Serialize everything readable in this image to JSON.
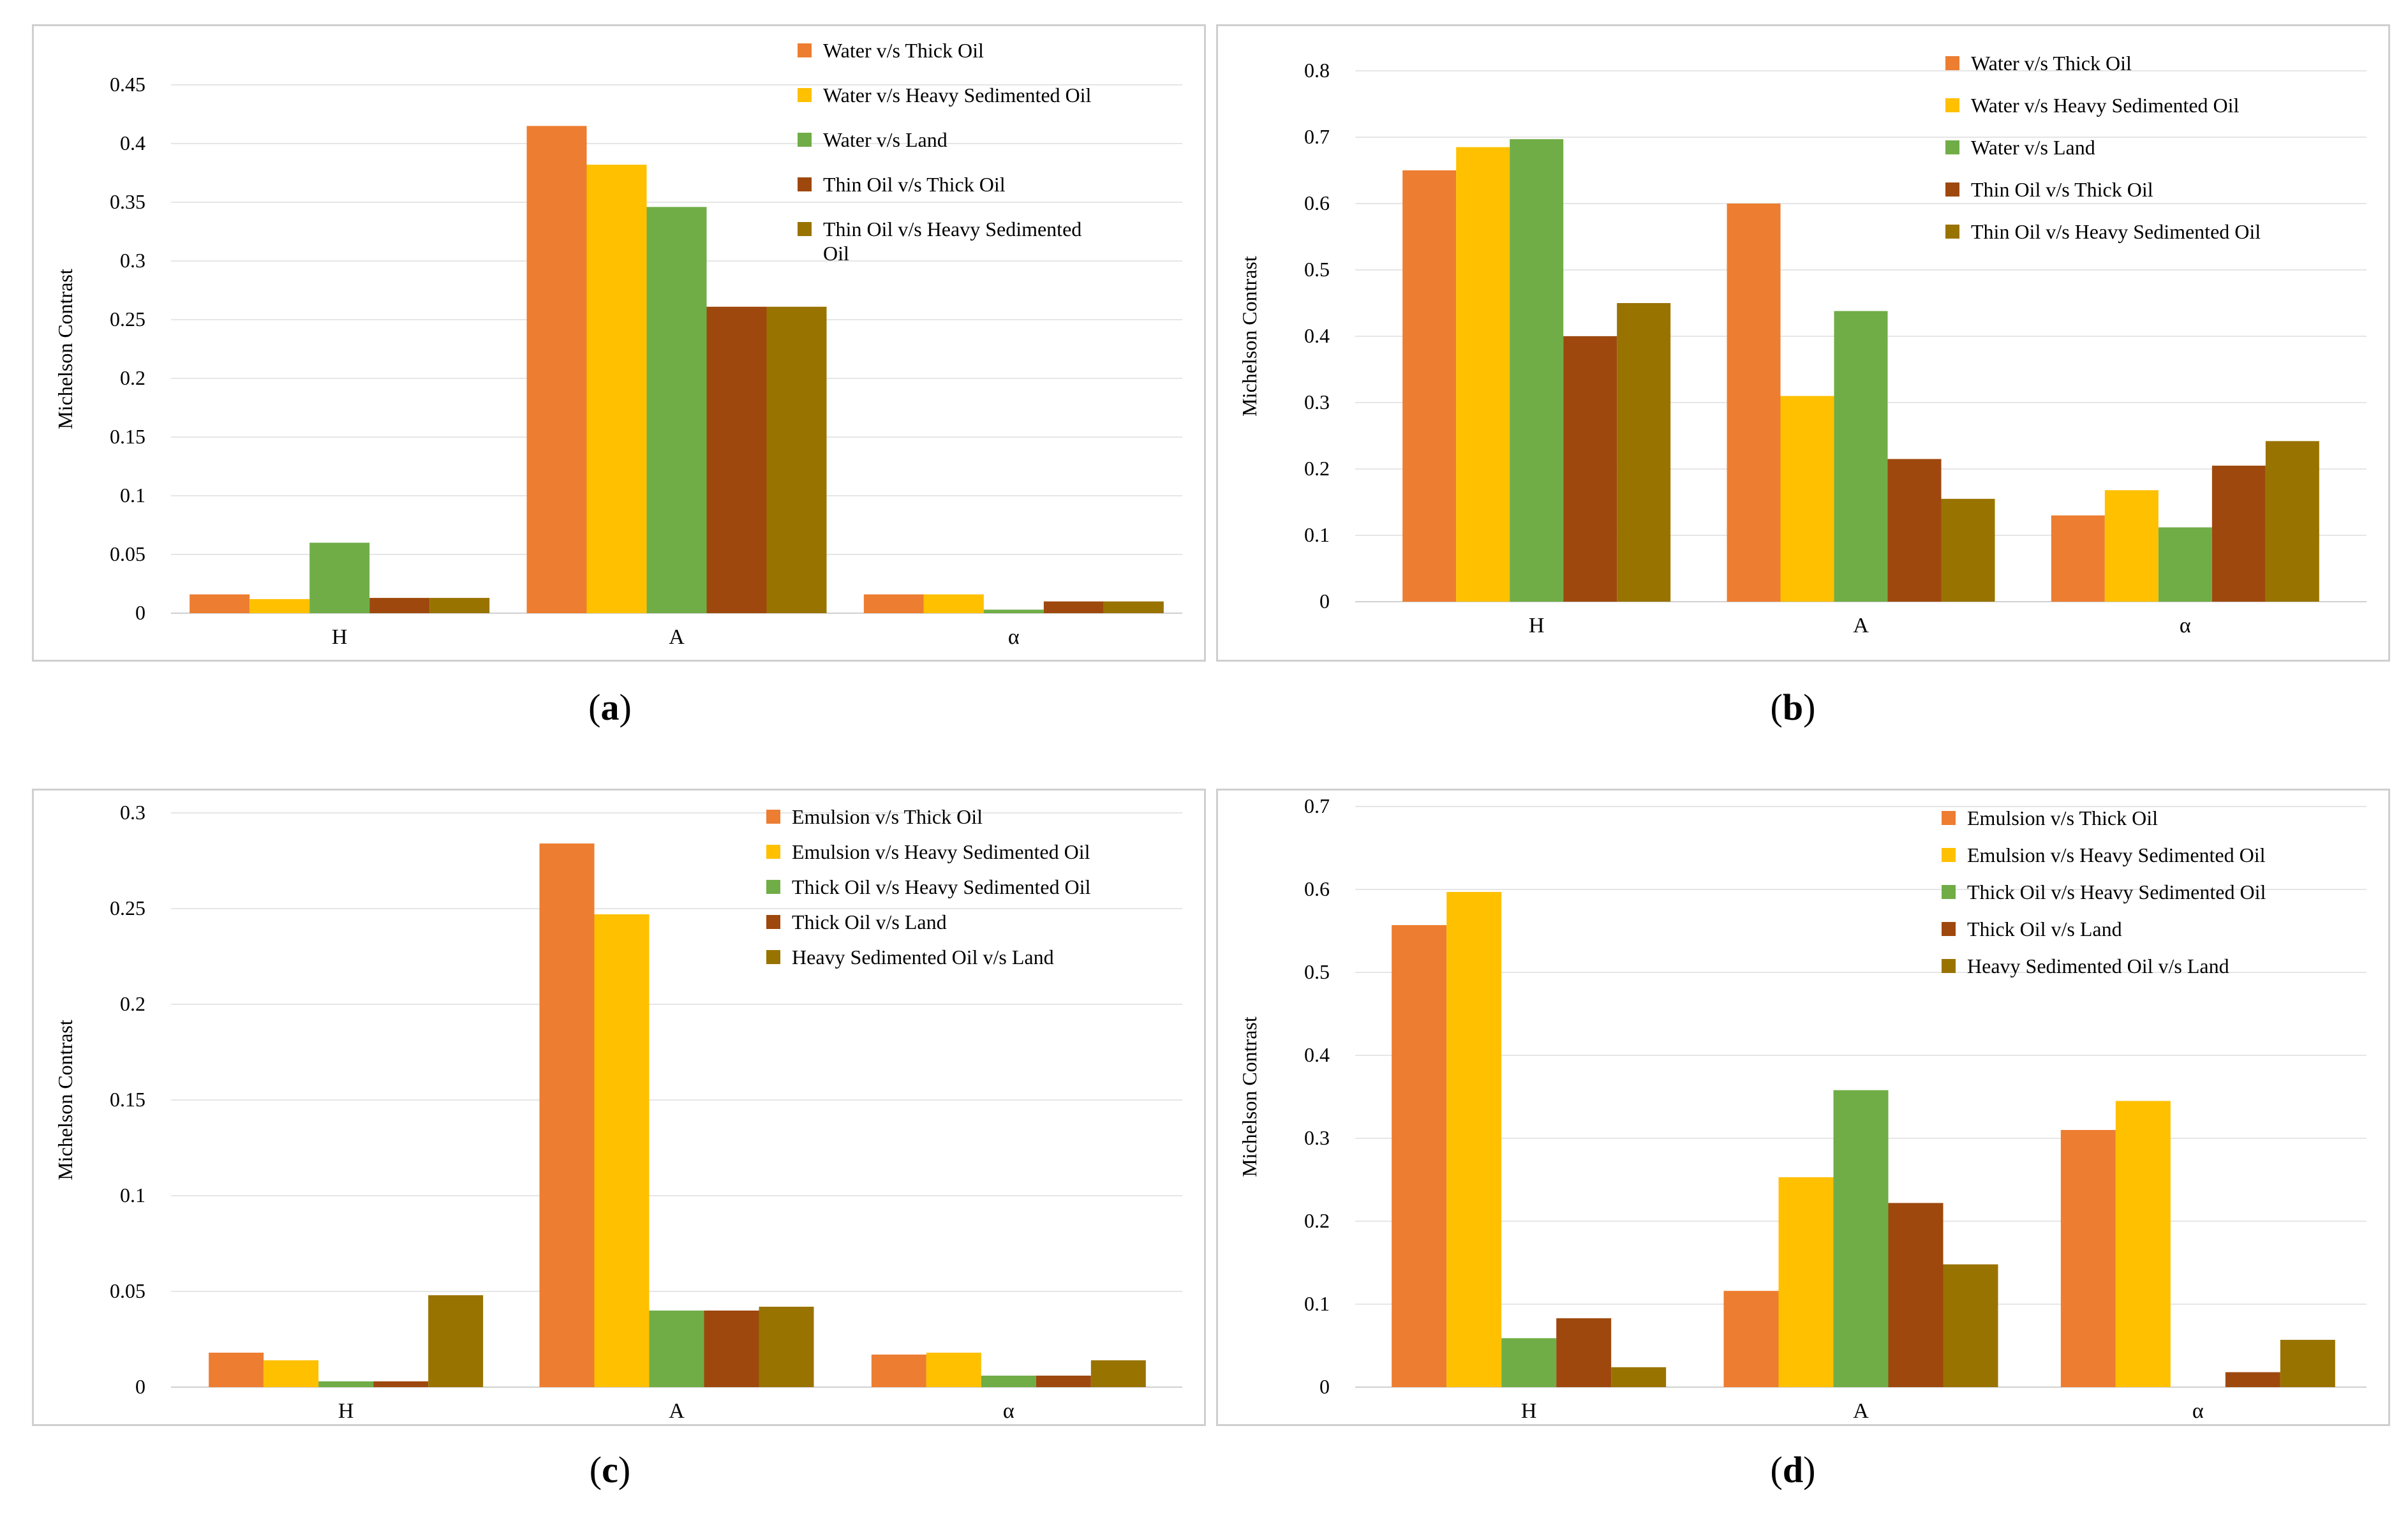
{
  "chart_data": [
    {
      "type": "bar",
      "caption": "a",
      "categories": [
        "H",
        "A",
        "α"
      ],
      "ylabel": "Michelson Contrast",
      "ylim": [
        0,
        0.45
      ],
      "yticks": [
        "0",
        "0.05",
        "0.1",
        "0.15",
        "0.2",
        "0.25",
        "0.3",
        "0.35",
        "0.4",
        "0.45"
      ],
      "legend": [
        "Water v/s Thick Oil",
        "Water v/s Heavy Sedimented Oil",
        "Water v/s Land",
        "Thin Oil v/s Thick Oil",
        "Thin Oil v/s Heavy Sedimented",
        "Oil"
      ],
      "series": [
        {
          "name": "Water v/s Thick Oil",
          "values": [
            0.016,
            0.415,
            0.016
          ]
        },
        {
          "name": "Water v/s Heavy Sedimented Oil",
          "values": [
            0.012,
            0.382,
            0.016
          ]
        },
        {
          "name": "Water v/s Land",
          "values": [
            0.06,
            0.346,
            0.003
          ]
        },
        {
          "name": "Thin Oil v/s Thick Oil",
          "values": [
            0.013,
            0.261,
            0.01
          ]
        },
        {
          "name": "Thin Oil v/s Heavy Sedimented Oil",
          "values": [
            0.013,
            0.261,
            0.01
          ]
        }
      ]
    },
    {
      "type": "bar",
      "caption": "b",
      "categories": [
        "H",
        "A",
        "α"
      ],
      "ylabel": "Michelson Contrast",
      "ylim": [
        0,
        0.8
      ],
      "yticks": [
        "0",
        "0.1",
        "0.2",
        "0.3",
        "0.4",
        "0.5",
        "0.6",
        "0.7",
        "0.8"
      ],
      "legend": [
        "Water v/s Thick Oil",
        "Water v/s Heavy Sedimented Oil",
        "Water v/s Land",
        "Thin Oil v/s Thick Oil",
        "Thin Oil v/s Heavy Sedimented Oil"
      ],
      "series": [
        {
          "name": "Water v/s Thick Oil",
          "values": [
            0.65,
            0.6,
            0.13
          ]
        },
        {
          "name": "Water v/s Heavy Sedimented Oil",
          "values": [
            0.685,
            0.31,
            0.168
          ]
        },
        {
          "name": "Water v/s Land",
          "values": [
            0.697,
            0.438,
            0.112
          ]
        },
        {
          "name": "Thin Oil v/s Thick Oil",
          "values": [
            0.4,
            0.215,
            0.205
          ]
        },
        {
          "name": "Thin Oil v/s Heavy Sedimented Oil",
          "values": [
            0.45,
            0.155,
            0.242
          ]
        }
      ]
    },
    {
      "type": "bar",
      "caption": "c",
      "categories": [
        "H",
        "A",
        "α"
      ],
      "ylabel": "Michelson Contrast",
      "ylim": [
        0,
        0.3
      ],
      "yticks": [
        "0",
        "0.05",
        "0.1",
        "0.15",
        "0.2",
        "0.25",
        "0.3"
      ],
      "legend": [
        "Emulsion v/s Thick Oil",
        "Emulsion v/s Heavy Sedimented Oil",
        "Thick Oil v/s Heavy Sedimented Oil",
        "Thick Oil v/s Land",
        "Heavy Sedimented Oil v/s Land"
      ],
      "series": [
        {
          "name": "Emulsion v/s Thick Oil",
          "values": [
            0.018,
            0.284,
            0.017
          ]
        },
        {
          "name": "Emulsion v/s Heavy Sedimented Oil",
          "values": [
            0.014,
            0.247,
            0.018
          ]
        },
        {
          "name": "Thick Oil v/s Heavy Sedimented Oil",
          "values": [
            0.003,
            0.04,
            0.006
          ]
        },
        {
          "name": "Thick Oil v/s Land",
          "values": [
            0.003,
            0.04,
            0.006
          ]
        },
        {
          "name": "Heavy Sedimented Oil v/s Land",
          "values": [
            0.048,
            0.042,
            0.014
          ]
        }
      ]
    },
    {
      "type": "bar",
      "caption": "d",
      "categories": [
        "H",
        "A",
        "α"
      ],
      "ylabel": "Michelson Contrast",
      "ylim": [
        0,
        0.7
      ],
      "yticks": [
        "0",
        "0.1",
        "0.2",
        "0.3",
        "0.4",
        "0.5",
        "0.6",
        "0.7"
      ],
      "legend": [
        "Emulsion v/s Thick Oil",
        "Emulsion v/s Heavy Sedimented Oil",
        "Thick Oil v/s Heavy Sedimented Oil",
        "Thick Oil v/s Land",
        "Heavy Sedimented Oil v/s Land"
      ],
      "series": [
        {
          "name": "Emulsion v/s Thick Oil",
          "values": [
            0.557,
            0.116,
            0.31
          ]
        },
        {
          "name": "Emulsion v/s Heavy Sedimented Oil",
          "values": [
            0.597,
            0.253,
            0.345
          ]
        },
        {
          "name": "Thick Oil v/s Heavy Sedimented Oil",
          "values": [
            0.059,
            0.358,
            0
          ]
        },
        {
          "name": "Thick Oil v/s Land",
          "values": [
            0.083,
            0.222,
            0.018
          ]
        },
        {
          "name": "Heavy Sedimented Oil v/s Land",
          "values": [
            0.024,
            0.148,
            0.057
          ]
        }
      ]
    }
  ],
  "colors": [
    "#ED7D31",
    "#FFC000",
    "#70AD47",
    "#9E480E",
    "#997300"
  ]
}
